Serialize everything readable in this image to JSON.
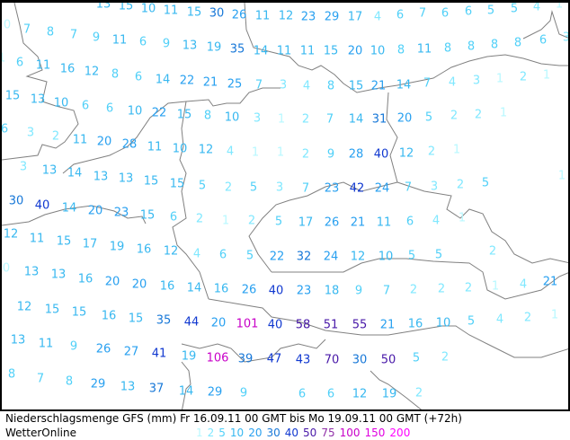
{
  "title": "Niederschlagsmenge GFS (mm)  Fr 16.09.11 00 GMT bis Mo 19.09.11 00 GMT (+72h)",
  "brand": "WetterOnline",
  "legend": [
    {
      "label": "1",
      "value": 1,
      "color": "#b8f8ff"
    },
    {
      "label": "2",
      "value": 2,
      "color": "#80e8ff"
    },
    {
      "label": "5",
      "value": 5,
      "color": "#50d0f8"
    },
    {
      "label": "10",
      "value": 10,
      "color": "#38b8f0"
    },
    {
      "label": "20",
      "value": 20,
      "color": "#28a0f0"
    },
    {
      "label": "30",
      "value": 30,
      "color": "#1878d8"
    },
    {
      "label": "40",
      "value": 40,
      "color": "#1038d0"
    },
    {
      "label": "50",
      "value": 50,
      "color": "#4818a8"
    },
    {
      "label": "75",
      "value": 75,
      "color": "#9030a8"
    },
    {
      "label": "100",
      "value": 100,
      "color": "#c800c8"
    },
    {
      "label": "150",
      "value": 150,
      "color": "#e000e0"
    },
    {
      "label": "200",
      "value": 200,
      "color": "#ff00ff"
    }
  ],
  "precipitation_mm": [
    13,
    15,
    10,
    11,
    15,
    30,
    26,
    11,
    12,
    23,
    29,
    17,
    4,
    6,
    7,
    6,
    6,
    5,
    5,
    4,
    1,
    0,
    7,
    8,
    7,
    9,
    11,
    6,
    9,
    13,
    19,
    35,
    14,
    11,
    11,
    15,
    20,
    10,
    8,
    11,
    8,
    8,
    8,
    8,
    6,
    3,
    1,
    6,
    11,
    16,
    12,
    8,
    6,
    14,
    22,
    21,
    25,
    7,
    3,
    4,
    8,
    15,
    21,
    14,
    7,
    4,
    3,
    1,
    2,
    1,
    15,
    13,
    10,
    6,
    6,
    10,
    22,
    15,
    8,
    10,
    3,
    1,
    2,
    7,
    14,
    31,
    20,
    5,
    2,
    2,
    1,
    6,
    3,
    2,
    11,
    20,
    28,
    11,
    10,
    12,
    4,
    1,
    1,
    2,
    9,
    28,
    40,
    12,
    2,
    1,
    3,
    13,
    14,
    13,
    13,
    15,
    15,
    5,
    2,
    5,
    3,
    7,
    23,
    42,
    24,
    7,
    3,
    2,
    5,
    1,
    30,
    40,
    14,
    20,
    23,
    15,
    6,
    2,
    1,
    2,
    5,
    17,
    26,
    21,
    11,
    6,
    4,
    1,
    12,
    11,
    15,
    17,
    19,
    16,
    12,
    4,
    6,
    5,
    22,
    32,
    24,
    12,
    10,
    5,
    5,
    2,
    0,
    13,
    13,
    16,
    20,
    20,
    16,
    14,
    16,
    26,
    40,
    23,
    18,
    9,
    7,
    2,
    2,
    2,
    1,
    4,
    21,
    12,
    15,
    15,
    16,
    15,
    35,
    44,
    20,
    101,
    40,
    58,
    51,
    55,
    21,
    16,
    10,
    5,
    4,
    2,
    1,
    13,
    11,
    9,
    26,
    27,
    41,
    19,
    106,
    39,
    47,
    43,
    70,
    30,
    50,
    5,
    2,
    8,
    7,
    8,
    29,
    13,
    37,
    14,
    29,
    9,
    6,
    6,
    12,
    19,
    2
  ]
}
